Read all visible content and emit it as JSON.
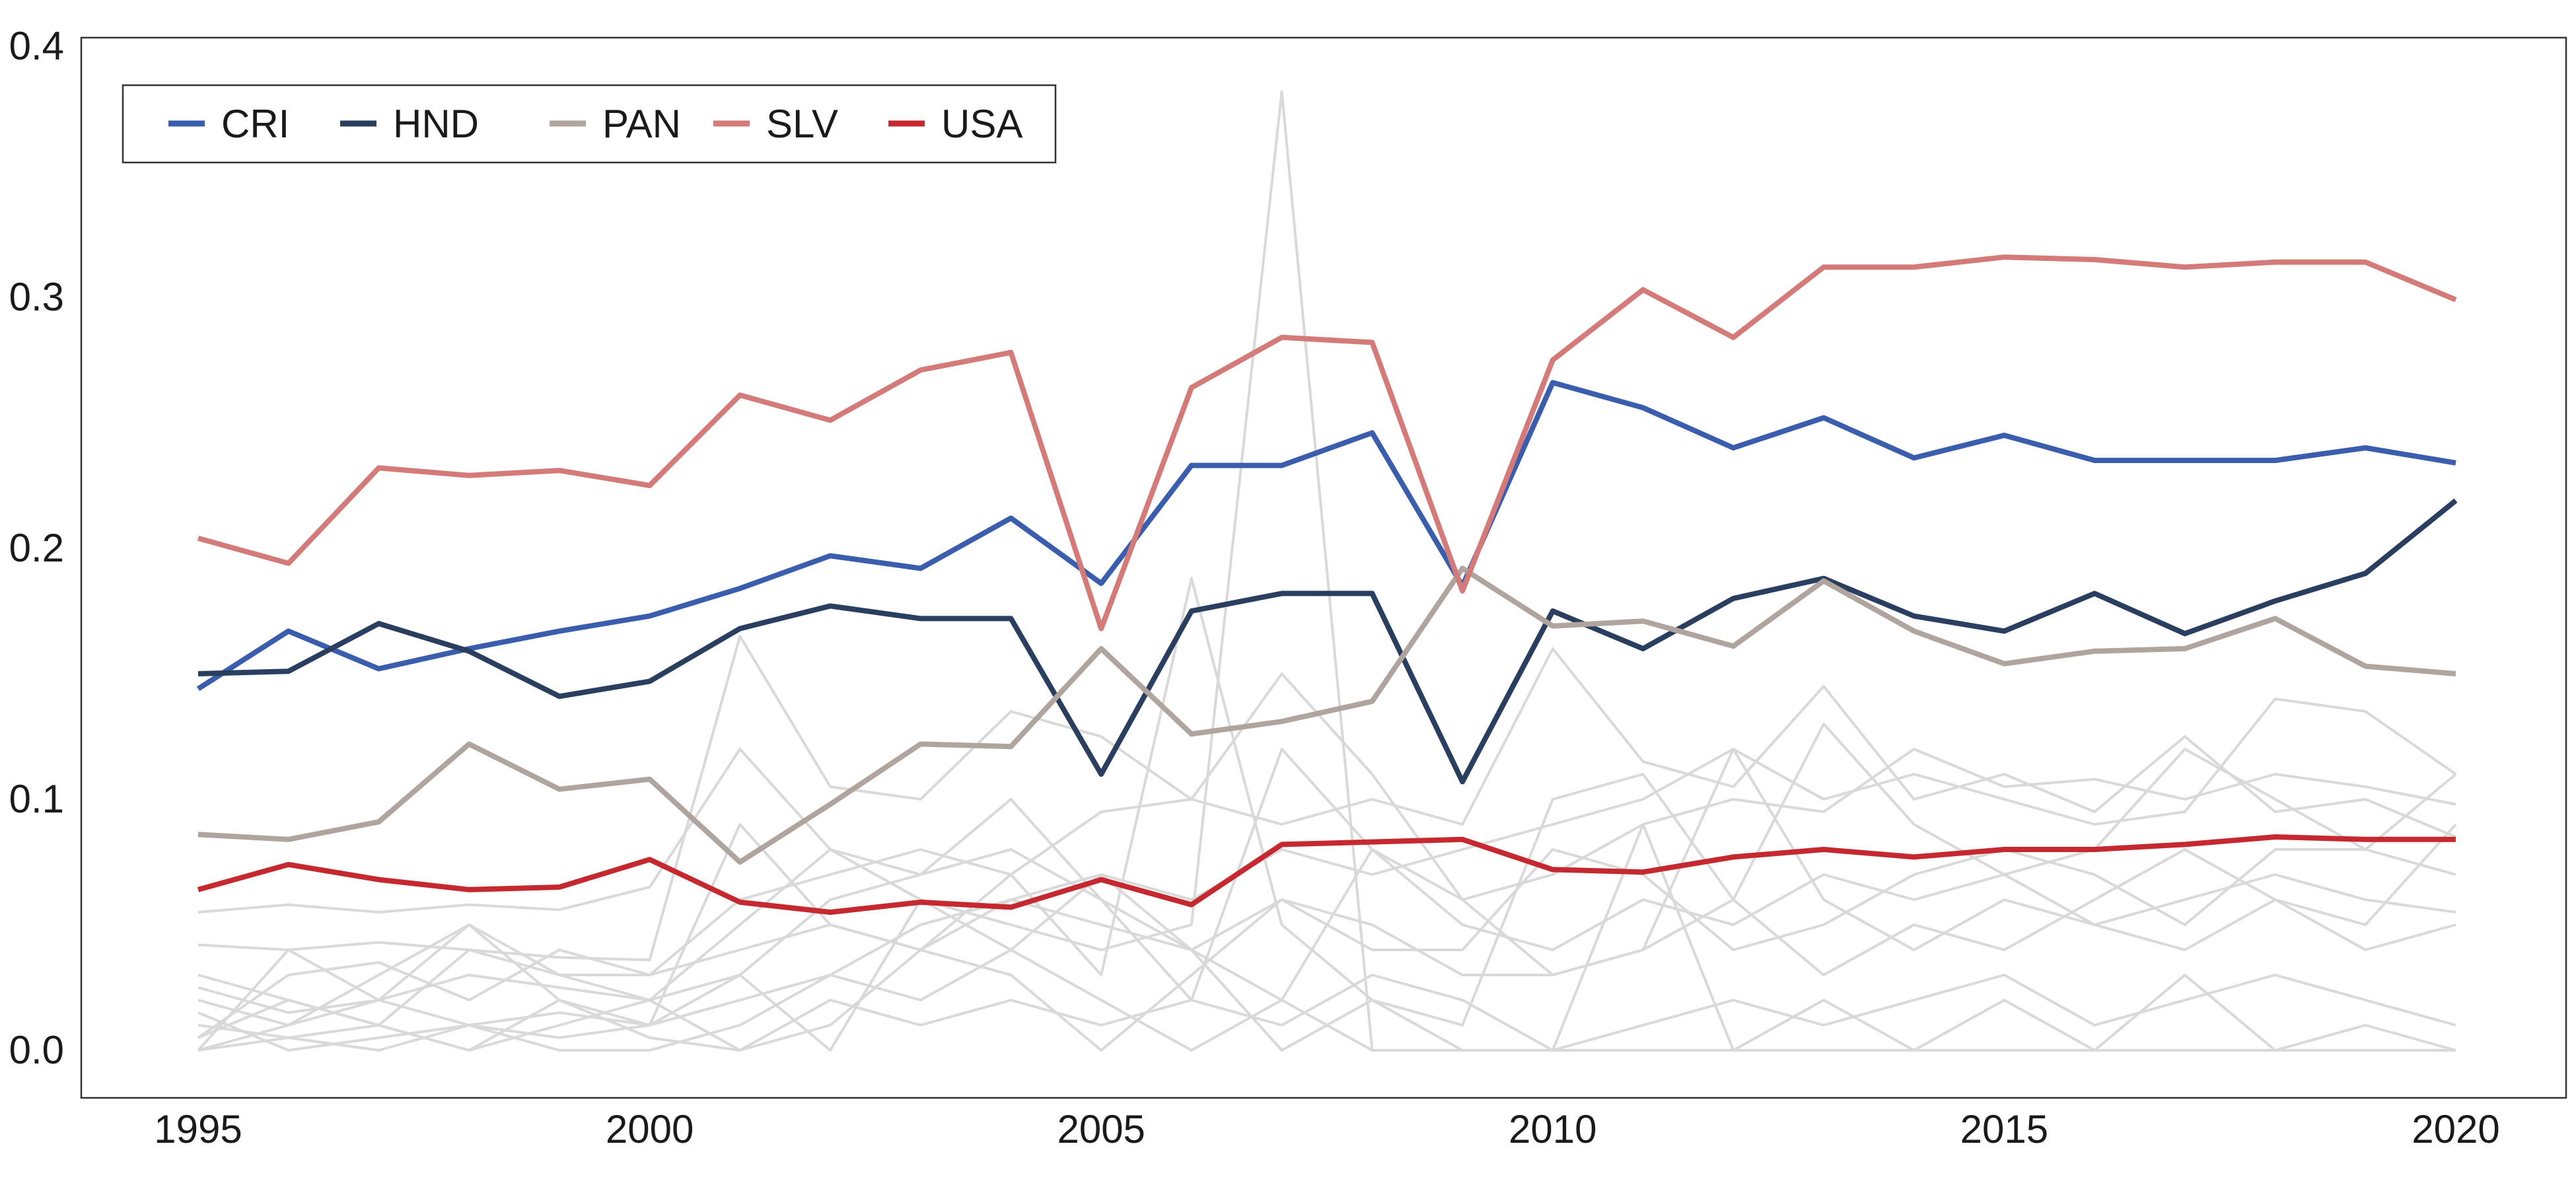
{
  "chart_data": {
    "type": "line",
    "title": "",
    "xlabel": "",
    "ylabel": "",
    "xlim": [
      1995,
      2020
    ],
    "ylim": [
      0,
      0.4
    ],
    "x_ticks": [
      1995,
      2000,
      2005,
      2010,
      2015,
      2020
    ],
    "y_ticks": [
      "0.0",
      "0.1",
      "0.2",
      "0.3",
      "0.4"
    ],
    "grid": false,
    "legend_position": "top-left",
    "x": [
      1995,
      1996,
      1997,
      1998,
      1999,
      2000,
      2001,
      2002,
      2003,
      2004,
      2005,
      2006,
      2007,
      2008,
      2009,
      2010,
      2011,
      2012,
      2013,
      2014,
      2015,
      2016,
      2017,
      2018,
      2019,
      2020
    ],
    "series": [
      {
        "name": "CRI",
        "color": "#3a5ead",
        "values": [
          0.144,
          0.167,
          0.152,
          0.16,
          0.167,
          0.173,
          0.184,
          0.197,
          0.192,
          0.212,
          0.186,
          0.233,
          0.233,
          0.246,
          0.185,
          0.266,
          0.256,
          0.24,
          0.252,
          0.236,
          0.245,
          0.235,
          0.235,
          0.235,
          0.24,
          0.234
        ]
      },
      {
        "name": "HND",
        "color": "#2a3f5f",
        "values": [
          0.15,
          0.151,
          0.17,
          0.159,
          0.141,
          0.147,
          0.168,
          0.177,
          0.172,
          0.172,
          0.11,
          0.175,
          0.182,
          0.182,
          0.107,
          0.175,
          0.16,
          0.18,
          0.188,
          0.173,
          0.167,
          0.182,
          0.166,
          0.179,
          0.19,
          0.219
        ]
      },
      {
        "name": "PAN",
        "color": "#b0a49e",
        "values": [
          0.086,
          0.084,
          0.091,
          0.122,
          0.104,
          0.108,
          0.075,
          0.098,
          0.122,
          0.121,
          0.16,
          0.126,
          0.131,
          0.139,
          0.192,
          0.169,
          0.171,
          0.161,
          0.187,
          0.167,
          0.154,
          0.159,
          0.16,
          0.172,
          0.153,
          0.15
        ]
      },
      {
        "name": "SLV",
        "color": "#d47a78",
        "values": [
          0.204,
          0.194,
          0.232,
          0.229,
          0.231,
          0.225,
          0.261,
          0.251,
          0.271,
          0.278,
          0.168,
          0.264,
          0.284,
          0.282,
          0.183,
          0.275,
          0.303,
          0.284,
          0.312,
          0.312,
          0.316,
          0.315,
          0.312,
          0.314,
          0.314,
          0.299
        ]
      },
      {
        "name": "USA",
        "color": "#c5282f",
        "values": [
          0.064,
          0.074,
          0.068,
          0.064,
          0.065,
          0.076,
          0.059,
          0.055,
          0.059,
          0.057,
          0.068,
          0.058,
          0.082,
          0.083,
          0.084,
          0.072,
          0.071,
          0.077,
          0.08,
          0.077,
          0.08,
          0.08,
          0.082,
          0.085,
          0.084,
          0.084
        ]
      }
    ],
    "background_series": {
      "color": "#d9d9d9",
      "lines": [
        [
          0.042,
          0.04,
          0.043,
          0.04,
          0.037,
          0.036,
          0.165,
          0.105,
          0.1,
          0.135,
          0.125,
          0.1,
          0.09,
          0.1,
          0.09,
          0.16,
          0.115,
          0.105,
          0.145,
          0.1,
          0.11,
          0.095,
          0.125,
          0.095,
          0.1,
          0.085
        ],
        [
          0.055,
          0.058,
          0.055,
          0.058,
          0.056,
          0.065,
          0.12,
          0.08,
          0.07,
          0.1,
          0.06,
          0.04,
          0.02,
          0.0,
          0.0,
          0.0,
          0.0,
          0.0,
          0.0,
          0.0,
          0.0,
          0.0,
          0.0,
          0.0,
          0.0,
          0.0
        ],
        [
          0.0,
          0.01,
          0.02,
          0.01,
          0.005,
          0.01,
          0.09,
          0.05,
          0.04,
          0.07,
          0.03,
          0.188,
          0.05,
          0.02,
          0.01,
          0.1,
          0.11,
          0.06,
          0.13,
          0.09,
          0.07,
          0.08,
          0.12,
          0.1,
          0.08,
          0.11
        ],
        [
          0.01,
          0.005,
          0.0,
          0.01,
          0.015,
          0.01,
          0.02,
          0.03,
          0.05,
          0.06,
          0.07,
          0.06,
          0.08,
          0.07,
          0.08,
          0.09,
          0.1,
          0.12,
          0.1,
          0.11,
          0.1,
          0.09,
          0.095,
          0.14,
          0.135,
          0.11
        ],
        [
          0.0,
          0.04,
          0.02,
          0.05,
          0.03,
          0.02,
          0.05,
          0.08,
          0.06,
          0.05,
          0.04,
          0.05,
          0.382,
          0.0,
          0.0,
          0.0,
          0.0,
          0.0,
          0.0,
          0.0,
          0.0,
          0.0,
          0.0,
          0.0,
          0.0,
          0.0
        ],
        [
          0.005,
          0.03,
          0.035,
          0.02,
          0.04,
          0.03,
          0.06,
          0.07,
          0.08,
          0.07,
          0.095,
          0.1,
          0.15,
          0.11,
          0.06,
          0.07,
          0.09,
          0.1,
          0.095,
          0.12,
          0.105,
          0.108,
          0.1,
          0.11,
          0.105,
          0.098
        ],
        [
          0.02,
          0.01,
          0.03,
          0.05,
          0.02,
          0.01,
          0.03,
          0.06,
          0.07,
          0.08,
          0.06,
          0.02,
          0.12,
          0.08,
          0.05,
          0.04,
          0.06,
          0.05,
          0.07,
          0.06,
          0.07,
          0.05,
          0.06,
          0.07,
          0.06,
          0.055
        ],
        [
          0.03,
          0.02,
          0.01,
          0.04,
          0.03,
          0.03,
          0.04,
          0.05,
          0.04,
          0.06,
          0.05,
          0.04,
          0.06,
          0.05,
          0.03,
          0.03,
          0.04,
          0.12,
          0.06,
          0.04,
          0.06,
          0.05,
          0.04,
          0.06,
          0.05,
          0.09
        ],
        [
          0.0,
          0.005,
          0.01,
          0.0,
          0.02,
          0.005,
          0.0,
          0.01,
          0.04,
          0.03,
          0.0,
          0.03,
          0.06,
          0.04,
          0.04,
          0.08,
          0.07,
          0.04,
          0.05,
          0.07,
          0.08,
          0.07,
          0.05,
          0.08,
          0.08,
          0.07
        ],
        [
          0.015,
          0.0,
          0.005,
          0.01,
          0.0,
          0.0,
          0.01,
          0.03,
          0.02,
          0.04,
          0.02,
          0.0,
          0.02,
          0.08,
          0.06,
          0.03,
          0.04,
          0.06,
          0.03,
          0.05,
          0.04,
          0.06,
          0.08,
          0.06,
          0.04,
          0.05
        ],
        [
          0.025,
          0.015,
          0.02,
          0.03,
          0.025,
          0.02,
          0.03,
          0.0,
          0.06,
          0.04,
          0.07,
          0.04,
          0.0,
          0.02,
          0.0,
          0.0,
          0.09,
          0.0,
          0.02,
          0.0,
          0.02,
          0.0,
          0.03,
          0.0,
          0.01,
          0.0
        ],
        [
          0.005,
          0.02,
          0.01,
          0.0,
          0.01,
          0.02,
          0.0,
          0.02,
          0.01,
          0.02,
          0.01,
          0.02,
          0.01,
          0.03,
          0.02,
          0.0,
          0.01,
          0.02,
          0.01,
          0.02,
          0.03,
          0.01,
          0.02,
          0.03,
          0.02,
          0.01
        ]
      ]
    }
  }
}
